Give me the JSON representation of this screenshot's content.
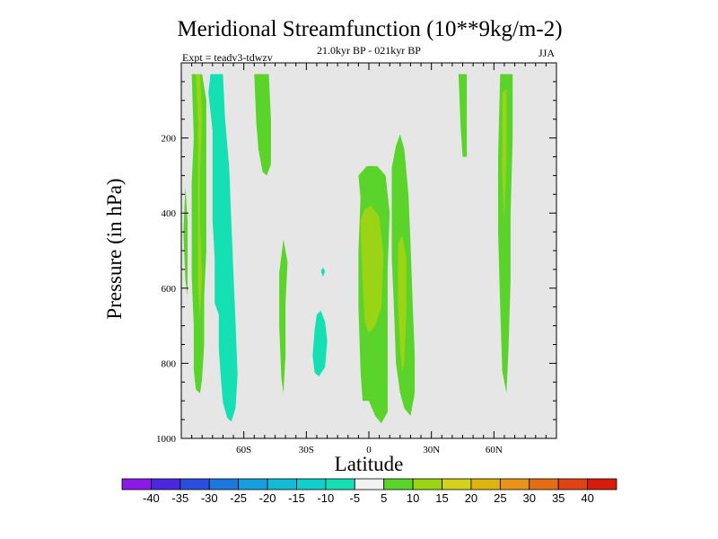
{
  "chart_data": {
    "type": "contour",
    "title": "Meridional Streamfunction (10**9kg/m-2)",
    "subtitle": "21.0kyr BP - 021kyr BP",
    "experiment": "Expt = teadv3-tdwzv",
    "season": "JJA",
    "xlabel": "Latitude",
    "ylabel": "Pressure (in hPa)",
    "xlim": [
      -90,
      90
    ],
    "ylim": [
      1000,
      0
    ],
    "x_ticks": [
      {
        "value": -60,
        "label": "60S"
      },
      {
        "value": -30,
        "label": "30S"
      },
      {
        "value": 0,
        "label": "0"
      },
      {
        "value": 30,
        "label": "30N"
      },
      {
        "value": 60,
        "label": "60N"
      }
    ],
    "y_ticks": [
      {
        "value": 200,
        "label": "200"
      },
      {
        "value": 400,
        "label": "400"
      },
      {
        "value": 600,
        "label": "600"
      },
      {
        "value": 800,
        "label": "800"
      },
      {
        "value": 1000,
        "label": "1000"
      }
    ],
    "background_color": "#e6e6e6",
    "colorbar": {
      "labels": [
        "-40",
        "-35",
        "-30",
        "-25",
        "-20",
        "-15",
        "-10",
        "-5",
        "5",
        "10",
        "15",
        "20",
        "25",
        "30",
        "35",
        "40"
      ],
      "colors": [
        "#8a1ae6",
        "#4b28e0",
        "#2a4fe0",
        "#1c78de",
        "#14a0dc",
        "#12bcd6",
        "#10d0cc",
        "#14e0b4",
        "#f2f2f2",
        "#5ad42a",
        "#9ad414",
        "#d2d21a",
        "#deb40e",
        "#e8941a",
        "#e46e14",
        "#e04214",
        "#d81c0c"
      ]
    },
    "regions": [
      {
        "level": "-5 to -10",
        "color": "#14e0b4",
        "points": [
          [
            -76,
            30
          ],
          [
            -70,
            30
          ],
          [
            -69,
            150
          ],
          [
            -67,
            280
          ],
          [
            -66,
            420
          ],
          [
            -65,
            560
          ],
          [
            -64,
            690
          ],
          [
            -63,
            830
          ],
          [
            -64,
            920
          ],
          [
            -66,
            955
          ],
          [
            -68,
            945
          ],
          [
            -70,
            905
          ],
          [
            -71,
            840
          ],
          [
            -72,
            760
          ],
          [
            -72,
            670
          ],
          [
            -74,
            640
          ],
          [
            -74,
            520
          ],
          [
            -75,
            420
          ],
          [
            -75,
            300
          ],
          [
            -75,
            180
          ],
          [
            -77,
            80
          ]
        ]
      },
      {
        "level": "-5 to -10",
        "color": "#14e0b4",
        "points": [
          [
            -23,
            660
          ],
          [
            -21,
            690
          ],
          [
            -20,
            740
          ],
          [
            -21,
            810
          ],
          [
            -24,
            835
          ],
          [
            -26,
            825
          ],
          [
            -27,
            780
          ],
          [
            -26,
            710
          ],
          [
            -25,
            670
          ]
        ]
      },
      {
        "level": "-5 to -10",
        "color": "#14e0b4",
        "points": [
          [
            -22,
            545
          ],
          [
            -21,
            555
          ],
          [
            -22,
            570
          ],
          [
            -23,
            555
          ]
        ]
      },
      {
        "level": "5 to 10",
        "color": "#5ad42a",
        "points": [
          [
            -85,
            30
          ],
          [
            -80,
            30
          ],
          [
            -78,
            100
          ],
          [
            -78,
            250
          ],
          [
            -78,
            380
          ],
          [
            -78,
            500
          ],
          [
            -79,
            620
          ],
          [
            -79,
            750
          ],
          [
            -80,
            840
          ],
          [
            -81,
            880
          ],
          [
            -83,
            870
          ],
          [
            -84,
            820
          ],
          [
            -84,
            700
          ],
          [
            -85,
            570
          ],
          [
            -85,
            440
          ],
          [
            -85,
            320
          ],
          [
            -84,
            200
          ]
        ]
      },
      {
        "level": "5 to 10",
        "color": "#5ad42a",
        "points": [
          [
            -88,
            330
          ],
          [
            -87,
            420
          ],
          [
            -87,
            530
          ],
          [
            -87,
            620
          ],
          [
            -88,
            580
          ],
          [
            -89,
            450
          ]
        ]
      },
      {
        "level": "5 to 10",
        "color": "#5ad42a",
        "points": [
          [
            -55,
            30
          ],
          [
            -48,
            30
          ],
          [
            -47,
            150
          ],
          [
            -47,
            270
          ],
          [
            -49,
            300
          ],
          [
            -51,
            290
          ],
          [
            -53,
            230
          ],
          [
            -54,
            160
          ]
        ]
      },
      {
        "level": "5 to 10",
        "color": "#5ad42a",
        "points": [
          [
            -41,
            470
          ],
          [
            -39,
            530
          ],
          [
            -40,
            640
          ],
          [
            -40,
            780
          ],
          [
            -41,
            880
          ],
          [
            -42,
            840
          ],
          [
            -43,
            700
          ],
          [
            -43,
            560
          ]
        ]
      },
      {
        "level": "5 to 10",
        "color": "#5ad42a",
        "points": [
          [
            -4,
            360
          ],
          [
            -5,
            300
          ],
          [
            -1,
            275
          ],
          [
            4,
            275
          ],
          [
            8,
            300
          ],
          [
            10,
            400
          ],
          [
            9,
            550
          ],
          [
            9,
            750
          ],
          [
            9,
            930
          ],
          [
            6,
            960
          ],
          [
            3,
            940
          ],
          [
            0,
            900
          ],
          [
            -3,
            900
          ],
          [
            -4,
            820
          ],
          [
            -5,
            650
          ],
          [
            -5,
            500
          ]
        ]
      },
      {
        "level": "5 to 10",
        "color": "#5ad42a",
        "points": [
          [
            11,
            400
          ],
          [
            11,
            280
          ],
          [
            13,
            220
          ],
          [
            15,
            190
          ],
          [
            17,
            230
          ],
          [
            19,
            350
          ],
          [
            20,
            480
          ],
          [
            21,
            640
          ],
          [
            22,
            780
          ],
          [
            22,
            880
          ],
          [
            20,
            940
          ],
          [
            17,
            920
          ],
          [
            15,
            880
          ],
          [
            13,
            800
          ],
          [
            12,
            650
          ],
          [
            11,
            520
          ]
        ]
      },
      {
        "level": "5 to 10",
        "color": "#5ad42a",
        "points": [
          [
            43,
            30
          ],
          [
            47,
            30
          ],
          [
            47,
            120
          ],
          [
            47,
            250
          ],
          [
            45,
            250
          ],
          [
            44,
            170
          ]
        ]
      },
      {
        "level": "5 to 10",
        "color": "#5ad42a",
        "points": [
          [
            63,
            30
          ],
          [
            69,
            30
          ],
          [
            69,
            200
          ],
          [
            68,
            400
          ],
          [
            68,
            580
          ],
          [
            67,
            760
          ],
          [
            66,
            880
          ],
          [
            64,
            820
          ],
          [
            63,
            650
          ],
          [
            62,
            450
          ],
          [
            62,
            250
          ]
        ]
      },
      {
        "level": "10 to 15",
        "color": "#9ad414",
        "points": [
          [
            -83,
            30
          ],
          [
            -81,
            30
          ],
          [
            -80,
            150
          ],
          [
            -81,
            290
          ],
          [
            -81,
            420
          ],
          [
            -80,
            570
          ],
          [
            -81,
            680
          ],
          [
            -82,
            600
          ],
          [
            -82,
            470
          ],
          [
            -82,
            320
          ],
          [
            -82,
            160
          ]
        ]
      },
      {
        "level": "10 to 15",
        "color": "#9ad414",
        "points": [
          [
            -4,
            420
          ],
          [
            -2,
            390
          ],
          [
            1,
            380
          ],
          [
            5,
            410
          ],
          [
            7,
            510
          ],
          [
            6,
            650
          ],
          [
            3,
            700
          ],
          [
            0,
            720
          ],
          [
            -2,
            690
          ],
          [
            -3,
            580
          ]
        ]
      },
      {
        "level": "10 to 15",
        "color": "#9ad414",
        "points": [
          [
            14,
            480
          ],
          [
            16,
            460
          ],
          [
            18,
            520
          ],
          [
            18,
            660
          ],
          [
            17,
            800
          ],
          [
            16,
            820
          ],
          [
            15,
            760
          ],
          [
            14,
            640
          ]
        ]
      },
      {
        "level": "10 to 15",
        "color": "#9ad414",
        "points": [
          [
            64,
            80
          ],
          [
            66,
            70
          ],
          [
            66,
            250
          ],
          [
            65,
            420
          ],
          [
            64,
            300
          ],
          [
            64,
            180
          ]
        ]
      }
    ]
  }
}
